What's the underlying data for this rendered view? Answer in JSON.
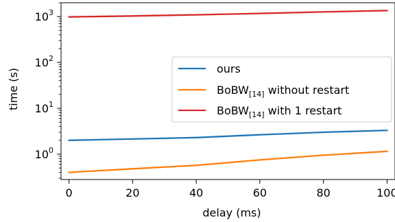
{
  "chart_data": {
    "type": "line",
    "xlabel": "delay (ms)",
    "ylabel": "time (s)",
    "xlim": [
      -2.5,
      102.5
    ],
    "ylim": [
      0.28,
      2000
    ],
    "yscale": "log",
    "xticks": [
      0,
      20,
      40,
      60,
      80,
      100
    ],
    "yticks": [
      {
        "value": 1,
        "base": "10",
        "exp": "0"
      },
      {
        "value": 10,
        "base": "10",
        "exp": "1"
      },
      {
        "value": 100,
        "base": "10",
        "exp": "2"
      },
      {
        "value": 1000,
        "base": "10",
        "exp": "3"
      }
    ],
    "grid": false,
    "legend_position": "center-right",
    "series": [
      {
        "name": "ours",
        "color": "#1f77b4",
        "x": [
          0,
          40,
          60,
          80,
          100
        ],
        "y": [
          2.0,
          2.3,
          2.65,
          3.0,
          3.3
        ]
      },
      {
        "name_main": "BoBW",
        "name_sub": "[14]",
        "name_rest": " without restart",
        "color": "#ff7f0e",
        "x": [
          0,
          20,
          40,
          60,
          80,
          100
        ],
        "y": [
          0.4,
          0.48,
          0.57,
          0.75,
          0.95,
          1.15
        ]
      },
      {
        "name_main": "BoBW",
        "name_sub": "[14]",
        "name_rest": " with 1 restart",
        "color": "#d62728",
        "x": [
          0,
          20,
          40,
          60,
          80,
          100
        ],
        "y": [
          980,
          1030,
          1090,
          1170,
          1260,
          1350
        ]
      }
    ]
  }
}
